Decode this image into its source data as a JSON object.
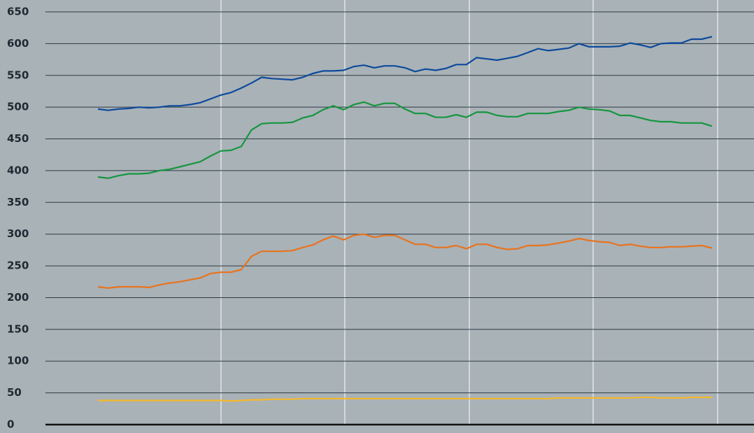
{
  "chart_data": {
    "type": "line",
    "categories": [
      null,
      null,
      null,
      null,
      null,
      null,
      null,
      null,
      null,
      null,
      null,
      null,
      null,
      null,
      null,
      null,
      null,
      null,
      null,
      null,
      null,
      null,
      null,
      null,
      null,
      null,
      null,
      null,
      null,
      null,
      null,
      null,
      null,
      null,
      null,
      null,
      null,
      null,
      null,
      null,
      null,
      null,
      null,
      null,
      null,
      null,
      null,
      null,
      null,
      null,
      null,
      null,
      null,
      null,
      null,
      null,
      null,
      null,
      null,
      null,
      null
    ],
    "series": [
      {
        "color": "#0d4a9c",
        "values": [
          497,
          495,
          497,
          498,
          500,
          499,
          500,
          502,
          502,
          504,
          507,
          513,
          519,
          523,
          530,
          538,
          547,
          545,
          544,
          543,
          547,
          553,
          557,
          557,
          558,
          564,
          566,
          562,
          565,
          565,
          562,
          556,
          560,
          558,
          561,
          567,
          567,
          578,
          576,
          574,
          577,
          580,
          586,
          592,
          589,
          591,
          593,
          600,
          595,
          595,
          595,
          596,
          601,
          598,
          594,
          600,
          601,
          601,
          607,
          607,
          611
        ]
      },
      {
        "color": "#15963f",
        "values": [
          390,
          388,
          392,
          395,
          395,
          396,
          400,
          402,
          406,
          410,
          414,
          423,
          431,
          432,
          438,
          464,
          474,
          475,
          475,
          476,
          483,
          487,
          496,
          502,
          496,
          504,
          508,
          502,
          506,
          506,
          497,
          490,
          490,
          484,
          484,
          488,
          484,
          492,
          492,
          487,
          485,
          485,
          490,
          490,
          490,
          493,
          495,
          500,
          497,
          496,
          494,
          487,
          487,
          483,
          479,
          477,
          477,
          475,
          475,
          475,
          470
        ]
      },
      {
        "color": "#e8731e",
        "values": [
          217,
          215,
          217,
          217,
          217,
          216,
          220,
          223,
          225,
          228,
          231,
          238,
          240,
          240,
          244,
          265,
          273,
          273,
          273,
          274,
          279,
          283,
          291,
          297,
          291,
          298,
          300,
          295,
          298,
          298,
          291,
          284,
          284,
          279,
          279,
          282,
          277,
          284,
          284,
          279,
          276,
          277,
          282,
          282,
          283,
          286,
          289,
          293,
          290,
          288,
          287,
          282,
          284,
          281,
          279,
          279,
          280,
          280,
          281,
          282,
          278
        ]
      },
      {
        "color": "#f5b82a",
        "values": [
          38,
          38,
          38,
          38,
          38,
          38,
          38,
          38,
          38,
          38,
          38,
          38,
          38,
          37,
          38,
          39,
          39,
          40,
          40,
          40,
          41,
          41,
          41,
          41,
          41,
          41,
          41,
          41,
          41,
          41,
          41,
          41,
          41,
          41,
          41,
          41,
          41,
          41,
          41,
          41,
          41,
          41,
          41,
          41,
          41,
          42,
          42,
          42,
          42,
          42,
          42,
          42,
          42,
          43,
          43,
          42,
          42,
          42,
          43,
          43,
          43
        ]
      }
    ],
    "ylim": [
      0,
      650
    ],
    "yticks": [
      0,
      50,
      100,
      150,
      200,
      250,
      300,
      350,
      400,
      450,
      500,
      550,
      600,
      650
    ],
    "grid": true
  }
}
